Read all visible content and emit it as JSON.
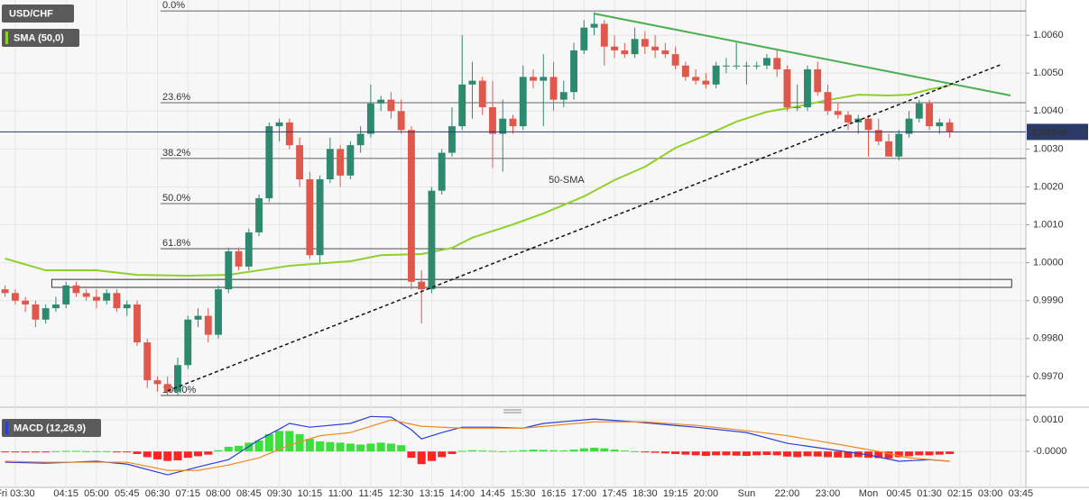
{
  "chart_data": [
    {
      "type": "candlestick",
      "title": "USD/CHF",
      "categories": [
        null,
        "Fri 03:30",
        null,
        null,
        null,
        null,
        "04:15",
        null,
        null,
        "05:00",
        null,
        null,
        "05:45",
        null,
        null,
        "06:30",
        null,
        null,
        "07:15",
        null,
        null,
        "08:00",
        null,
        null,
        "08:45",
        null,
        null,
        "09:30",
        null,
        null,
        "10:15",
        null,
        null,
        "11:00",
        null,
        null,
        "11:45",
        null,
        null,
        "12:30",
        null,
        null,
        "13:15",
        null,
        null,
        "14:00",
        null,
        null,
        "14:45",
        null,
        null,
        "15:30",
        null,
        null,
        "16:15",
        null,
        null,
        "17:00",
        null,
        null,
        "17:45",
        null,
        null,
        "18:30",
        null,
        null,
        "19:15",
        null,
        null,
        "20:00",
        null,
        null,
        null,
        "Sun",
        null,
        null,
        null,
        "22:00",
        null,
        null,
        null,
        "23:00",
        null,
        null,
        null,
        "Mon",
        null,
        null,
        "00:45",
        null,
        null,
        "01:30",
        null,
        null,
        "02:15",
        null,
        null,
        "03:00",
        null,
        null,
        "03:45"
      ],
      "ohlc": [
        [
          0.9993,
          0.9994,
          0.9991,
          0.9992
        ],
        [
          0.9992,
          0.9993,
          0.9989,
          0.999
        ],
        [
          0.999,
          0.9991,
          0.9987,
          0.9989
        ],
        [
          0.9989,
          0.999,
          0.9983,
          0.9985
        ],
        [
          0.9985,
          0.9989,
          0.9984,
          0.9988
        ],
        [
          0.9988,
          0.9991,
          0.9987,
          0.9989
        ],
        [
          0.9989,
          0.9995,
          0.9988,
          0.9994
        ],
        [
          0.9994,
          0.9995,
          0.9991,
          0.9992
        ],
        [
          0.9992,
          0.9993,
          0.999,
          0.9991
        ],
        [
          0.9991,
          0.9993,
          0.9988,
          0.999
        ],
        [
          0.999,
          0.9993,
          0.9989,
          0.9992
        ],
        [
          0.9992,
          0.9993,
          0.9987,
          0.9988
        ],
        [
          0.9988,
          0.999,
          0.9986,
          0.9989
        ],
        [
          0.9989,
          0.999,
          0.9978,
          0.9979
        ],
        [
          0.9979,
          0.998,
          0.9967,
          0.9969
        ],
        [
          0.9969,
          0.997,
          0.9966,
          0.9968
        ],
        [
          0.9968,
          0.997,
          0.9965,
          0.9966
        ],
        [
          0.9966,
          0.9975,
          0.9965,
          0.9973
        ],
        [
          0.9973,
          0.9986,
          0.9972,
          0.9985
        ],
        [
          0.9985,
          0.9988,
          0.9983,
          0.9986
        ],
        [
          0.9986,
          0.9988,
          0.9979,
          0.9981
        ],
        [
          0.9981,
          0.9994,
          0.998,
          0.9993
        ],
        [
          0.9993,
          1.0004,
          0.9992,
          1.0003
        ],
        [
          1.0003,
          1.0004,
          0.9998,
          0.9999
        ],
        [
          0.9999,
          1.0009,
          0.9998,
          1.0008
        ],
        [
          1.0008,
          1.0018,
          1.0007,
          1.0017
        ],
        [
          1.0017,
          1.0037,
          1.0016,
          1.0036
        ],
        [
          1.0036,
          1.0038,
          1.0032,
          1.0037
        ],
        [
          1.0037,
          1.0038,
          1.003,
          1.0031
        ],
        [
          1.0031,
          1.0033,
          1.002,
          1.0022
        ],
        [
          1.0022,
          1.0024,
          1.0001,
          1.0002
        ],
        [
          1.0002,
          1.0023,
          1.0,
          1.0022
        ],
        [
          1.0022,
          1.0033,
          1.0021,
          1.003
        ],
        [
          1.003,
          1.0031,
          1.002,
          1.0023
        ],
        [
          1.0023,
          1.0032,
          1.0022,
          1.0031
        ],
        [
          1.0031,
          1.0036,
          1.0029,
          1.0034
        ],
        [
          1.0034,
          1.0047,
          1.0033,
          1.0042
        ],
        [
          1.0042,
          1.0044,
          1.004,
          1.0043
        ],
        [
          1.0043,
          1.0045,
          1.0038,
          1.004
        ],
        [
          1.004,
          1.0043,
          1.0034,
          1.0035
        ],
        [
          1.0035,
          1.0036,
          0.9993,
          0.9995
        ],
        [
          0.9995,
          0.9998,
          0.9984,
          0.9993
        ],
        [
          0.9993,
          1.002,
          0.9992,
          1.0019
        ],
        [
          1.0019,
          1.003,
          1.0018,
          1.0029
        ],
        [
          1.0029,
          1.0041,
          1.0028,
          1.0036
        ],
        [
          1.0036,
          1.006,
          1.0035,
          1.0047
        ],
        [
          1.0047,
          1.0053,
          1.0038,
          1.0048
        ],
        [
          1.0048,
          1.0049,
          1.0039,
          1.0041
        ],
        [
          1.0041,
          1.0048,
          1.0025,
          1.0034
        ],
        [
          1.0034,
          1.0043,
          1.0024,
          1.0038
        ],
        [
          1.0038,
          1.0039,
          1.0034,
          1.0036
        ],
        [
          1.0036,
          1.0052,
          1.0035,
          1.0049
        ],
        [
          1.0049,
          1.0051,
          1.0046,
          1.0048
        ],
        [
          1.0048,
          1.0055,
          1.0036,
          1.0049
        ],
        [
          1.0049,
          1.0053,
          1.004,
          1.0043
        ],
        [
          1.0043,
          1.0048,
          1.0041,
          1.0045
        ],
        [
          1.0045,
          1.0058,
          1.0043,
          1.0056
        ],
        [
          1.0056,
          1.0064,
          1.0055,
          1.0062
        ],
        [
          1.0062,
          1.0066,
          1.006,
          1.0063
        ],
        [
          1.0063,
          1.0064,
          1.0052,
          1.0057
        ],
        [
          1.0057,
          1.006,
          1.0054,
          1.0056
        ],
        [
          1.0056,
          1.0058,
          1.0054,
          1.0055
        ],
        [
          1.0055,
          1.0062,
          1.0054,
          1.0059
        ],
        [
          1.0059,
          1.0061,
          1.0055,
          1.0057
        ],
        [
          1.0057,
          1.006,
          1.0054,
          1.0056
        ],
        [
          1.0056,
          1.0058,
          1.0054,
          1.0055
        ],
        [
          1.0055,
          1.0057,
          1.0051,
          1.0052
        ],
        [
          1.0052,
          1.0053,
          1.0048,
          1.0049
        ],
        [
          1.0049,
          1.0051,
          1.0047,
          1.0048
        ],
        [
          1.0048,
          1.005,
          1.0046,
          1.0047
        ],
        [
          1.0047,
          1.0053,
          1.0046,
          1.0052
        ],
        [
          1.0052,
          1.0054,
          1.005,
          1.0052
        ],
        [
          1.0052,
          1.0058,
          1.0051,
          1.0052
        ],
        [
          1.0052,
          1.0053,
          1.0047,
          1.0052
        ],
        [
          1.0052,
          1.0053,
          1.0051,
          1.0052
        ],
        [
          1.0052,
          1.0055,
          1.0051,
          1.0054
        ],
        [
          1.0054,
          1.0056,
          1.0049,
          1.0051
        ],
        [
          1.0051,
          1.0052,
          1.004,
          1.0041
        ],
        [
          1.0041,
          1.0047,
          1.004,
          1.0041
        ],
        [
          1.0041,
          1.0052,
          1.004,
          1.0051
        ],
        [
          1.0051,
          1.0053,
          1.0044,
          1.0045
        ],
        [
          1.0045,
          1.0047,
          1.0039,
          1.004
        ],
        [
          1.004,
          1.0042,
          1.0038,
          1.0039
        ],
        [
          1.0039,
          1.004,
          1.0035,
          1.0037
        ],
        [
          1.0037,
          1.0039,
          1.0034,
          1.0038
        ],
        [
          1.0038,
          1.0039,
          1.0028,
          1.0035
        ],
        [
          1.0035,
          1.0038,
          1.0031,
          1.0032
        ],
        [
          1.0032,
          1.0034,
          1.0028,
          1.0028
        ],
        [
          1.0028,
          1.0035,
          1.0027,
          1.0034
        ],
        [
          1.0034,
          1.004,
          1.0033,
          1.0038
        ],
        [
          1.0038,
          1.0043,
          1.0037,
          1.0042
        ],
        [
          1.0042,
          1.0043,
          1.0035,
          1.0036
        ],
        [
          1.0036,
          1.0038,
          1.0034,
          1.0037
        ],
        [
          1.0037,
          1.0038,
          1.0033,
          1.00345
        ],
        null,
        null,
        null,
        null,
        null,
        null,
        null
      ],
      "up_color": "#2d8a6e",
      "down_color": "#e0574b",
      "ylim": [
        0.99619,
        1.00681
      ],
      "yticks": [
        {
          "value": 1.006,
          "label": "1.0060"
        },
        {
          "value": 1.005,
          "label": "1.0050"
        },
        {
          "value": 1.004,
          "label": "1.0040"
        },
        {
          "value": 1.003,
          "label": "1.0030"
        },
        {
          "value": 1.002,
          "label": "1.0020"
        },
        {
          "value": 1.001,
          "label": "1.0010"
        },
        {
          "value": 1.0,
          "label": "1.0000"
        },
        {
          "value": 0.999,
          "label": "0.9990"
        },
        {
          "value": 0.998,
          "label": "0.9980"
        },
        {
          "value": 0.997,
          "label": "0.9970"
        }
      ],
      "grid": true,
      "last_price": 1.00345,
      "sma": {
        "name": "SMA (50,0)",
        "color": "#8fd12a",
        "x": [
          0,
          4,
          9,
          13,
          18,
          22,
          25,
          28,
          34,
          37,
          41,
          44,
          46,
          50,
          53,
          57,
          60,
          63,
          66,
          69,
          72,
          75,
          78,
          81,
          84,
          87,
          89,
          91,
          93
        ],
        "values": [
          1.00011,
          0.9998,
          0.9998,
          0.99968,
          0.99966,
          0.99968,
          0.9998,
          0.99992,
          1.00004,
          1.0002,
          1.00023,
          1.00039,
          1.00066,
          1.00101,
          1.0013,
          1.00175,
          1.00218,
          1.00253,
          1.00303,
          1.00336,
          1.00372,
          1.00398,
          1.00412,
          1.00429,
          1.00443,
          1.00441,
          1.00443,
          1.00457,
          1.00467
        ]
      },
      "annotation": "50-SMA",
      "fib_levels": [
        {
          "label": "0.0%",
          "value": 1.00664
        },
        {
          "label": "23.6%",
          "value": 1.00422
        },
        {
          "label": "38.2%",
          "value": 1.00275
        },
        {
          "label": "50.0%",
          "value": 1.00156
        },
        {
          "label": "61.8%",
          "value": 1.00037
        },
        {
          "label": "100.0%",
          "value": 0.9965
        }
      ],
      "trendlines": [
        {
          "style": "solid",
          "color": "#4caf50",
          "x": [
            58,
            99
          ],
          "values": [
            1.00657,
            1.00441
          ]
        },
        {
          "style": "dashed",
          "color": "#111111",
          "x": [
            16,
            98
          ],
          "values": [
            0.99662,
            1.00522
          ]
        }
      ],
      "zone": {
        "x": [
          4.6,
          99.1
        ],
        "values": [
          0.99935,
          0.99956
        ]
      }
    },
    {
      "type": "macd",
      "title": "MACD (12,26,9)",
      "ylim": [
        -0.00111,
        0.00129
      ],
      "yticks": [
        {
          "value": 0.001,
          "label": "0.0010"
        },
        {
          "value": 0,
          "label": "-0.0000"
        }
      ],
      "histogram": {
        "up_color": "#3be03b",
        "down_color": "#ff2424",
        "values": [
          -2e-05,
          -2e-05,
          -3e-05,
          -3e-05,
          -2e-05,
          1e-05,
          2e-05,
          2e-05,
          1e-05,
          1e-05,
          1e-05,
          -1e-05,
          -1e-05,
          -8e-05,
          -0.00018,
          -0.00025,
          -0.0003,
          -0.00028,
          -0.0002,
          -0.00015,
          -0.0001,
          4e-05,
          0.00015,
          0.00018,
          0.00028,
          0.00035,
          0.00055,
          0.00065,
          0.00065,
          0.00055,
          0.0004,
          0.00032,
          0.0003,
          0.00028,
          0.00025,
          0.00022,
          0.00025,
          0.00028,
          0.00025,
          0.0002,
          -0.0002,
          -0.0004,
          -0.0003,
          -0.00018,
          -8e-05,
          2e-05,
          4e-05,
          3e-05,
          2e-05,
          1e-05,
          2e-05,
          4e-05,
          6e-05,
          5e-05,
          4e-05,
          3e-05,
          6e-05,
          0.0001,
          0.00012,
          0.0001,
          6e-05,
          3e-05,
          1e-05,
          -2e-05,
          -4e-05,
          -6e-05,
          -8e-05,
          -0.0001,
          -0.00012,
          -0.00014,
          -0.00012,
          -0.00012,
          -0.00013,
          -0.00014,
          -0.00012,
          -0.00011,
          -0.00012,
          -0.00016,
          -0.00018,
          -0.00015,
          -0.00016,
          -0.00018,
          -0.00019,
          -0.0002,
          -0.00018,
          -0.0002,
          -0.00021,
          -0.00022,
          -0.00018,
          -0.00015,
          -0.00012,
          -0.00012,
          -0.0001,
          -8e-05,
          null,
          null,
          null,
          null,
          null,
          null,
          null
        ]
      },
      "lines": [
        {
          "color": "#2a3fd8",
          "x": [
            0,
            4,
            9,
            12,
            16,
            19,
            22,
            25,
            27,
            28,
            30,
            34,
            36,
            38,
            40,
            41,
            43,
            45,
            48,
            51,
            53,
            58,
            62,
            68,
            73,
            77,
            82,
            85,
            88,
            91,
            93
          ],
          "values": [
            -0.00034,
            -0.00037,
            -0.00031,
            -0.0004,
            -0.00074,
            -0.00049,
            -0.00026,
            0.00037,
            0.00071,
            0.00089,
            0.00077,
            0.00089,
            0.00111,
            0.00109,
            0.00069,
            0.0004,
            0.0006,
            0.00077,
            0.00077,
            0.00074,
            0.00089,
            0.00103,
            0.00094,
            0.00077,
            0.0006,
            0.00026,
            3e-05,
            -0.00011,
            -0.00031,
            -0.00026,
            -0.00031
          ]
        },
        {
          "color": "#f08a24",
          "x": [
            0,
            4,
            9,
            12,
            16,
            19,
            22,
            25,
            28,
            31,
            34,
            38,
            41,
            45,
            51,
            58,
            63,
            68,
            73,
            77,
            82,
            86,
            89,
            93
          ],
          "values": [
            -0.00031,
            -0.00034,
            -0.00034,
            -0.00034,
            -0.0006,
            -0.0006,
            -0.00043,
            -0.0002,
            0.0002,
            0.0005,
            0.0006,
            0.001,
            0.0008,
            0.00074,
            0.00074,
            0.00094,
            0.00094,
            0.00083,
            0.00066,
            0.0005,
            0.00023,
            0,
            -0.0002,
            -0.00031
          ]
        }
      ]
    }
  ]
}
